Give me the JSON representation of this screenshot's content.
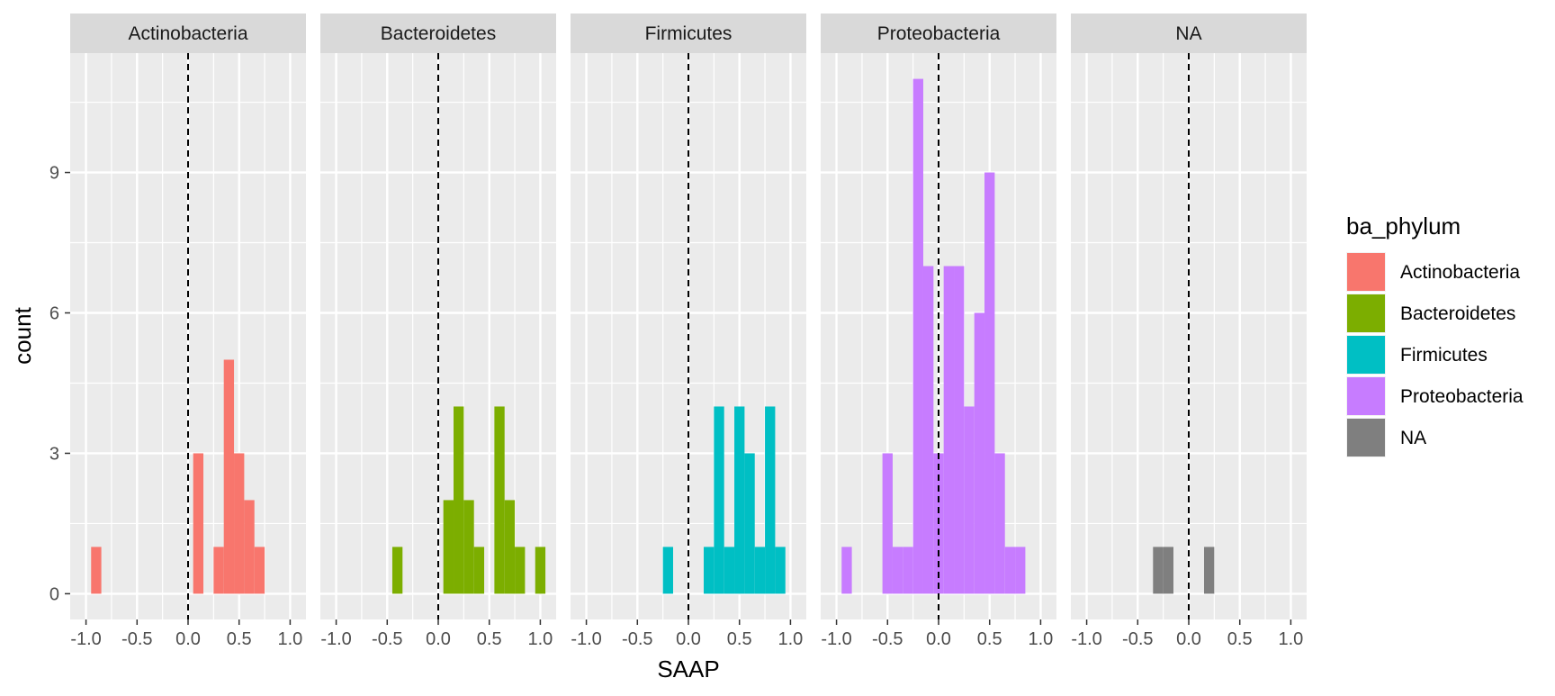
{
  "chart_data": {
    "type": "bar",
    "subtype": "faceted-histogram",
    "xlabel": "SAAP",
    "ylabel": "count",
    "xlim": [
      -1.0,
      1.0
    ],
    "ylim": [
      0,
      11
    ],
    "x_ticks": [
      -1.0,
      -0.5,
      0.0,
      0.5,
      1.0
    ],
    "x_tick_labels": [
      "-1.0",
      "-0.5",
      "0.0",
      "0.5",
      "1.0"
    ],
    "y_ticks": [
      0,
      3,
      6,
      9
    ],
    "y_tick_labels": [
      "0",
      "3",
      "6",
      "9"
    ],
    "bin_width": 0.1,
    "reference_line": {
      "x": 0,
      "style": "dashed"
    },
    "grid": true,
    "legend": {
      "title": "ba_phylum",
      "position": "right",
      "entries": [
        {
          "label": "Actinobacteria",
          "color": "#F8766D"
        },
        {
          "label": "Bacteroidetes",
          "color": "#7CAE00"
        },
        {
          "label": "Firmicutes",
          "color": "#00BFC4"
        },
        {
          "label": "Proteobacteria",
          "color": "#C77CFF"
        },
        {
          "label": "NA",
          "color": "#7F7F7F"
        }
      ]
    },
    "panels": [
      {
        "name": "Actinobacteria",
        "color": "#F8766D",
        "bins": [
          {
            "x": -0.9,
            "count": 1
          },
          {
            "x": 0.1,
            "count": 3
          },
          {
            "x": 0.3,
            "count": 1
          },
          {
            "x": 0.4,
            "count": 5
          },
          {
            "x": 0.5,
            "count": 3
          },
          {
            "x": 0.6,
            "count": 2
          },
          {
            "x": 0.7,
            "count": 1
          }
        ]
      },
      {
        "name": "Bacteroidetes",
        "color": "#7CAE00",
        "bins": [
          {
            "x": -0.4,
            "count": 1
          },
          {
            "x": 0.1,
            "count": 2
          },
          {
            "x": 0.2,
            "count": 4
          },
          {
            "x": 0.3,
            "count": 2
          },
          {
            "x": 0.4,
            "count": 1
          },
          {
            "x": 0.6,
            "count": 4
          },
          {
            "x": 0.7,
            "count": 2
          },
          {
            "x": 0.8,
            "count": 1
          },
          {
            "x": 1.0,
            "count": 1
          }
        ]
      },
      {
        "name": "Firmicutes",
        "color": "#00BFC4",
        "bins": [
          {
            "x": -0.2,
            "count": 1
          },
          {
            "x": 0.2,
            "count": 1
          },
          {
            "x": 0.3,
            "count": 4
          },
          {
            "x": 0.4,
            "count": 1
          },
          {
            "x": 0.5,
            "count": 4
          },
          {
            "x": 0.6,
            "count": 3
          },
          {
            "x": 0.7,
            "count": 1
          },
          {
            "x": 0.8,
            "count": 4
          },
          {
            "x": 0.9,
            "count": 1
          }
        ]
      },
      {
        "name": "Proteobacteria",
        "color": "#C77CFF",
        "bins": [
          {
            "x": -0.9,
            "count": 1
          },
          {
            "x": -0.5,
            "count": 3
          },
          {
            "x": -0.4,
            "count": 1
          },
          {
            "x": -0.3,
            "count": 1
          },
          {
            "x": -0.2,
            "count": 11
          },
          {
            "x": -0.1,
            "count": 7
          },
          {
            "x": 0.0,
            "count": 3
          },
          {
            "x": 0.1,
            "count": 7
          },
          {
            "x": 0.2,
            "count": 7
          },
          {
            "x": 0.3,
            "count": 4
          },
          {
            "x": 0.4,
            "count": 6
          },
          {
            "x": 0.5,
            "count": 9
          },
          {
            "x": 0.6,
            "count": 3
          },
          {
            "x": 0.7,
            "count": 1
          },
          {
            "x": 0.8,
            "count": 1
          }
        ]
      },
      {
        "name": "NA",
        "color": "#7F7F7F",
        "bins": [
          {
            "x": -0.3,
            "count": 1
          },
          {
            "x": -0.2,
            "count": 1
          },
          {
            "x": 0.2,
            "count": 1
          }
        ]
      }
    ]
  }
}
